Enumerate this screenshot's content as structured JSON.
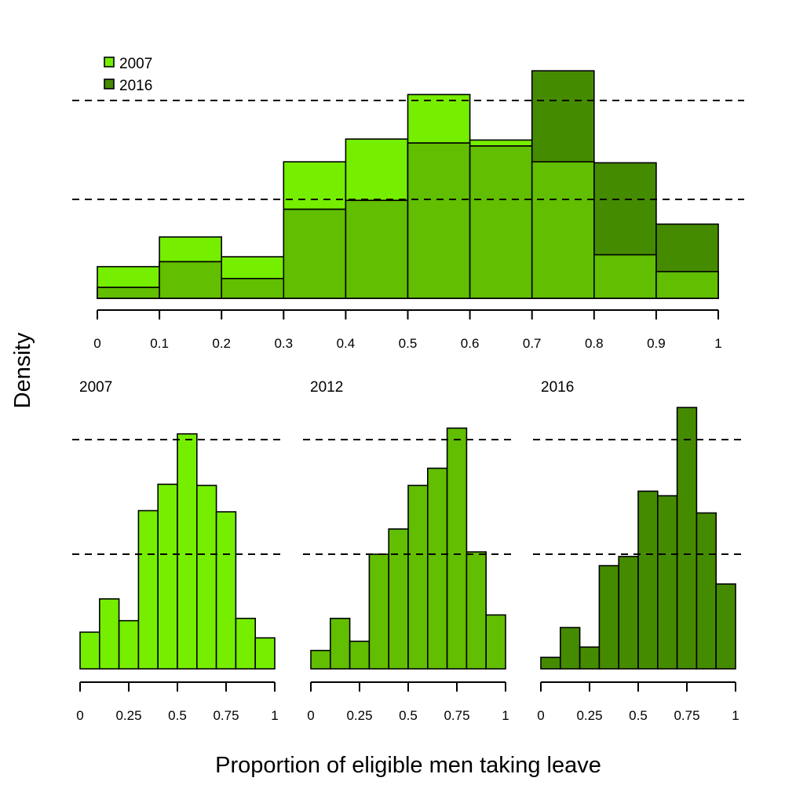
{
  "chart_data": [
    {
      "type": "bar",
      "layout": "overlaid histogram",
      "bin_edges": [
        0,
        0.1,
        0.2,
        0.3,
        0.4,
        0.5,
        0.6,
        0.7,
        0.8,
        0.9,
        1
      ],
      "x_tick_labels": [
        "0",
        "0.1",
        "0.2",
        "0.3",
        "0.4",
        "0.5",
        "0.6",
        "0.7",
        "0.8",
        "0.9",
        "1"
      ],
      "xlim": [
        0,
        1
      ],
      "ylim": [
        0,
        2.3
      ],
      "y_axis_visible": false,
      "reference_lines_y": [
        1,
        2
      ],
      "reference_line_style": "dashed",
      "legend_position": "top-left",
      "series": [
        {
          "name": "2007",
          "color": "#76EE00",
          "values": [
            0.32,
            0.62,
            0.42,
            1.38,
            1.61,
            2.06,
            1.6,
            1.38,
            0.44,
            0.27
          ]
        },
        {
          "name": "2016",
          "color": "#458B00",
          "values": [
            0.11,
            0.37,
            0.2,
            0.9,
            0.99,
            1.57,
            1.54,
            2.3,
            1.37,
            0.75
          ]
        }
      ],
      "draw_order": [
        "2007",
        "2016"
      ],
      "overlap_color": "#61BE00"
    },
    {
      "type": "bar",
      "title": "2007",
      "color": "#76EE00",
      "bin_edges": [
        0,
        0.1,
        0.2,
        0.3,
        0.4,
        0.5,
        0.6,
        0.7,
        0.8,
        0.9,
        1
      ],
      "values": [
        0.32,
        0.61,
        0.42,
        1.38,
        1.61,
        2.05,
        1.6,
        1.37,
        0.44,
        0.27
      ],
      "x_tick_labels": [
        "0",
        "0.25",
        "0.5",
        "0.75",
        "1"
      ],
      "x_ticks": [
        0,
        0.25,
        0.5,
        0.75,
        1
      ],
      "xlim": [
        0,
        1
      ],
      "ylim": [
        0,
        2.3
      ],
      "y_axis_visible": false,
      "reference_lines_y": [
        1,
        2
      ]
    },
    {
      "type": "bar",
      "title": "2012",
      "color": "#61BE00",
      "bin_edges": [
        0,
        0.1,
        0.2,
        0.3,
        0.4,
        0.5,
        0.6,
        0.7,
        0.8,
        0.9,
        1
      ],
      "values": [
        0.16,
        0.44,
        0.24,
        1.0,
        1.22,
        1.6,
        1.75,
        2.1,
        1.02,
        0.47
      ],
      "x_tick_labels": [
        "0",
        "0.25",
        "0.5",
        "0.75",
        "1"
      ],
      "x_ticks": [
        0,
        0.25,
        0.5,
        0.75,
        1
      ],
      "xlim": [
        0,
        1
      ],
      "ylim": [
        0,
        2.3
      ],
      "y_axis_visible": false,
      "reference_lines_y": [
        1,
        2
      ]
    },
    {
      "type": "bar",
      "title": "2016",
      "color": "#458B00",
      "bin_edges": [
        0,
        0.1,
        0.2,
        0.3,
        0.4,
        0.5,
        0.6,
        0.7,
        0.8,
        0.9,
        1
      ],
      "values": [
        0.1,
        0.36,
        0.19,
        0.9,
        0.98,
        1.55,
        1.51,
        2.28,
        1.36,
        0.74
      ],
      "x_tick_labels": [
        "0",
        "0.25",
        "0.5",
        "0.75",
        "1"
      ],
      "x_ticks": [
        0,
        0.25,
        0.5,
        0.75,
        1
      ],
      "xlim": [
        0,
        1
      ],
      "ylim": [
        0,
        2.3
      ],
      "y_axis_visible": false,
      "reference_lines_y": [
        1,
        2
      ]
    }
  ],
  "xlabel": "Proportion of eligible men taking leave",
  "ylabel": "Density"
}
